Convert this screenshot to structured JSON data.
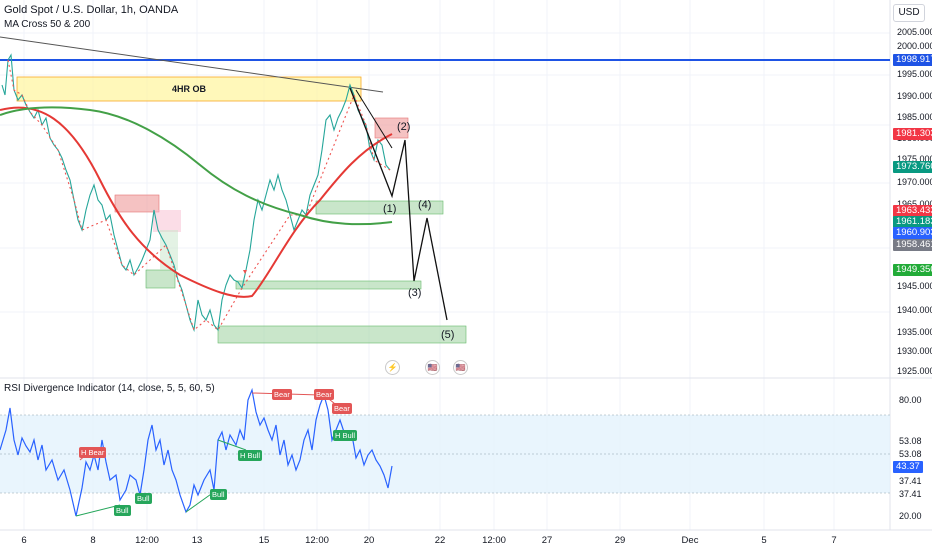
{
  "header": {
    "symbol": "Gold Spot / U.S. Dollar, 1h, OANDA",
    "indicator": "MA Cross 50 & 200",
    "currency": "USD"
  },
  "price_axis": {
    "ticks": [
      "2005.000",
      "2000.000",
      "1995.000",
      "1990.000",
      "1985.000",
      "1980.000",
      "1975.000",
      "1970.000",
      "1965.000",
      "1960.000",
      "1945.000",
      "1940.000",
      "1935.000",
      "1930.000",
      "1925.000"
    ],
    "tags": [
      {
        "value": "1998.917",
        "color": "#1e53e5"
      },
      {
        "value": "1981.303",
        "color": "#f23645"
      },
      {
        "value": "1973.760",
        "color": "#089981"
      },
      {
        "value": "1963.433",
        "color": "#f23645"
      },
      {
        "value": "1961.183",
        "color": "#089981"
      },
      {
        "value": "1960.903",
        "color": "#2962ff"
      },
      {
        "value": "1958.461",
        "color": "#787b86"
      },
      {
        "value": "1949.350",
        "color": "#22ab38"
      }
    ]
  },
  "annotations": {
    "ob_label": "4HR OB",
    "waves": [
      "(1)",
      "(2)",
      "(3)",
      "(4)",
      "(5)"
    ]
  },
  "rsi": {
    "title": "RSI Divergence Indicator (14, close, 5, 5, 60, 5)",
    "ticks": [
      "80.00",
      "53.08",
      "53.08",
      "37.41",
      "37.41",
      "20.00"
    ],
    "current": "43.37",
    "current_color": "#2962ff",
    "badges": {
      "h_bear": "H Bear",
      "bear1": "Bear",
      "bear2": "Bear",
      "bear3": "Bear",
      "h_bull1": "H Bull",
      "h_bull2": "H Bull",
      "bull1": "Bull",
      "bull2": "Bull",
      "bull3": "Bull"
    }
  },
  "time_axis": [
    "6",
    "8",
    "12:00",
    "13",
    "15",
    "12:00",
    "20",
    "22",
    "12:00",
    "27",
    "29",
    "Dec",
    "5",
    "7"
  ],
  "events": {
    "icon1": "⚡",
    "icon2": "🇺🇸",
    "icon3": "🇺🇸"
  },
  "colors": {
    "ma50": "#e53935",
    "ma200": "#43a047",
    "resistance": "#1e53e5",
    "rsi_line": "#2962ff",
    "rsi_band": "#e3f2fd"
  }
}
